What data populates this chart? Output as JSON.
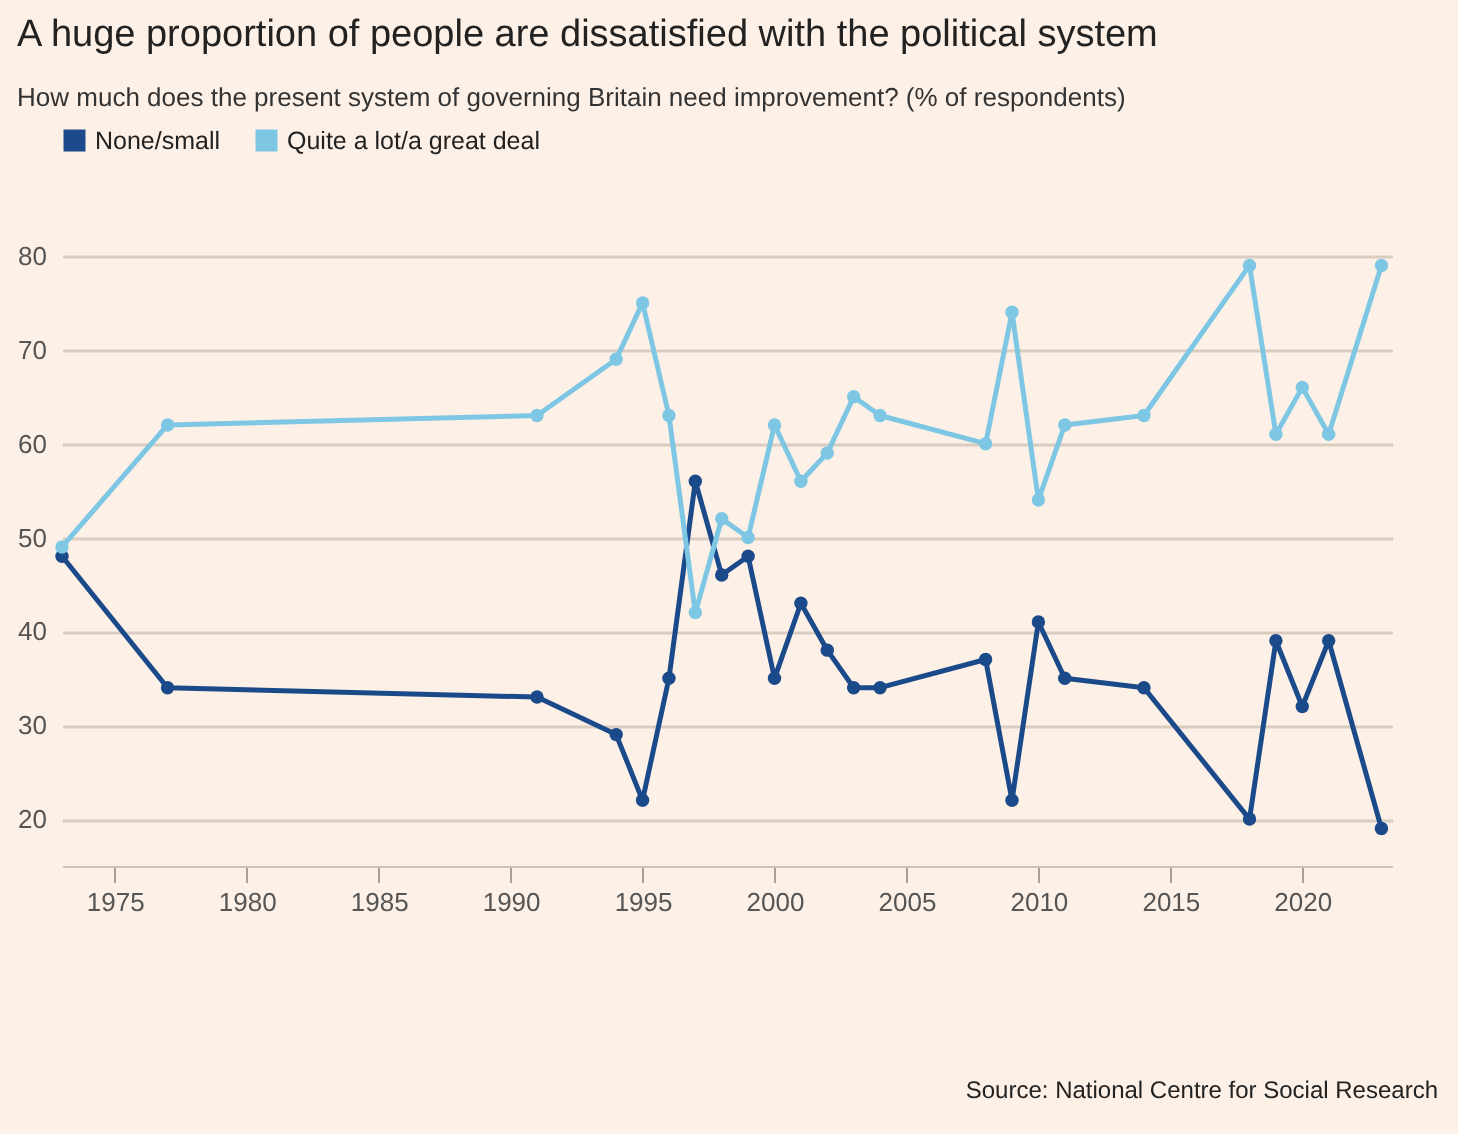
{
  "chart_data": {
    "type": "line",
    "title": "A huge proportion of people are dissatisfied with the political system",
    "subtitle": "How much does the present system of governing Britain need improvement? (% of respondents)",
    "annotations": [
      "Source: National Centre for Social Research"
    ],
    "x": [
      1973,
      1977,
      1991,
      1994,
      1995,
      1996,
      1997,
      1998,
      1999,
      2000,
      2001,
      2002,
      2003,
      2004,
      2008,
      2009,
      2010,
      2011,
      2014,
      2018,
      2019,
      2020,
      2021,
      2023
    ],
    "series": [
      {
        "name": "None/small",
        "color": "#1b4a8a",
        "values": [
          48,
          34,
          33,
          29,
          22,
          35,
          56,
          46,
          48,
          35,
          43,
          38,
          34,
          34,
          37,
          22,
          41,
          35,
          34,
          20,
          39,
          32,
          39,
          19
        ]
      },
      {
        "name": "Quite a lot/a great deal",
        "color": "#7ec7e4",
        "values": [
          49,
          62,
          63,
          69,
          75,
          63,
          42,
          52,
          50,
          62,
          56,
          59,
          65,
          63,
          60,
          74,
          54,
          62,
          63,
          79,
          61,
          66,
          61,
          79
        ]
      }
    ],
    "xlim": [
      1973,
      2023.4
    ],
    "xticks": [
      1975,
      1980,
      1985,
      1990,
      1995,
      2000,
      2005,
      2010,
      2015,
      2020
    ],
    "ylim": [
      15,
      80
    ],
    "yticks": [
      20,
      30,
      40,
      50,
      60,
      70,
      80
    ],
    "grid": "y",
    "legend": "top left",
    "marker": "circle",
    "line_style": "solid"
  }
}
